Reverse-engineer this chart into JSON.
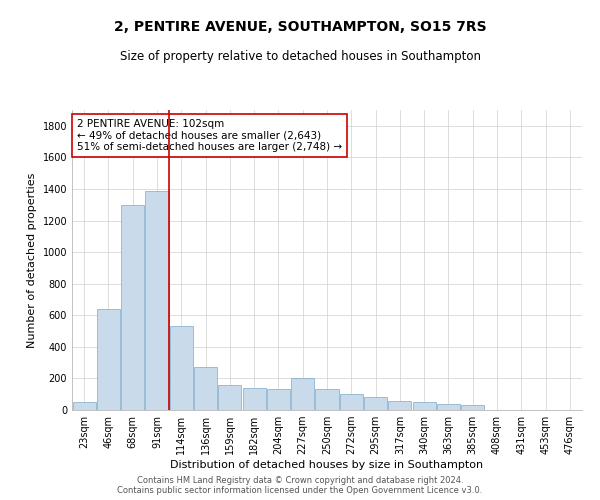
{
  "title": "2, PENTIRE AVENUE, SOUTHAMPTON, SO15 7RS",
  "subtitle": "Size of property relative to detached houses in Southampton",
  "xlabel": "Distribution of detached houses by size in Southampton",
  "ylabel": "Number of detached properties",
  "categories": [
    "23sqm",
    "46sqm",
    "68sqm",
    "91sqm",
    "114sqm",
    "136sqm",
    "159sqm",
    "182sqm",
    "204sqm",
    "227sqm",
    "250sqm",
    "272sqm",
    "295sqm",
    "317sqm",
    "340sqm",
    "363sqm",
    "385sqm",
    "408sqm",
    "431sqm",
    "453sqm",
    "476sqm"
  ],
  "values": [
    50,
    640,
    1300,
    1390,
    530,
    270,
    160,
    140,
    130,
    200,
    130,
    100,
    80,
    60,
    50,
    40,
    30,
    0,
    0,
    0,
    0
  ],
  "bar_color": "#c9daea",
  "bar_edge_color": "#7aaac8",
  "grid_color": "#d0d0d0",
  "background_color": "#ffffff",
  "annotation_box_color": "#cc0000",
  "vline_color": "#cc0000",
  "property_label": "2 PENTIRE AVENUE: 102sqm",
  "annotation_line1": "← 49% of detached houses are smaller (2,643)",
  "annotation_line2": "51% of semi-detached houses are larger (2,748) →",
  "footer_line1": "Contains HM Land Registry data © Crown copyright and database right 2024.",
  "footer_line2": "Contains public sector information licensed under the Open Government Licence v3.0.",
  "ylim": [
    0,
    1900
  ],
  "yticks": [
    0,
    200,
    400,
    600,
    800,
    1000,
    1200,
    1400,
    1600,
    1800
  ],
  "title_fontsize": 10,
  "subtitle_fontsize": 8.5,
  "axis_label_fontsize": 8,
  "tick_fontsize": 7,
  "annotation_fontsize": 7.5,
  "footer_fontsize": 6
}
